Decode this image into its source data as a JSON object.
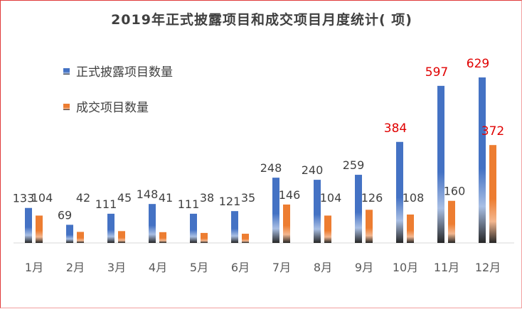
{
  "chart_data": {
    "type": "bar",
    "title": "2019年正式披露项目和成交项目月度统计( 项)",
    "categories": [
      "1月",
      "2月",
      "3月",
      "4月",
      "5月",
      "6月",
      "7月",
      "8月",
      "9月",
      "10月",
      "11月",
      "12月"
    ],
    "series": [
      {
        "name": "正式披露项目数量",
        "color": "#4472c4",
        "values": [
          133,
          69,
          111,
          148,
          111,
          121,
          248,
          240,
          259,
          384,
          597,
          629
        ],
        "labels": [
          "133",
          "69",
          "111",
          "148",
          "111",
          "121",
          "248",
          "240",
          "259",
          "384",
          "597",
          "629"
        ]
      },
      {
        "name": "成交项目数量",
        "color": "#ed7d31",
        "values": [
          104,
          42,
          45,
          41,
          38,
          35,
          146,
          104,
          126,
          108,
          160,
          372
        ],
        "labels": [
          "104",
          "42",
          "45",
          "41",
          "38",
          "35",
          "146",
          "104",
          "126",
          "108",
          "160",
          "372"
        ]
      }
    ],
    "highlight_label_color": "#e00000",
    "highlighted_points": [
      {
        "series": 0,
        "index": 9
      },
      {
        "series": 0,
        "index": 10
      },
      {
        "series": 0,
        "index": 11
      },
      {
        "series": 1,
        "index": 11
      }
    ],
    "ylim": [
      0,
      629
    ],
    "xlabel": "",
    "ylabel": "",
    "grid": false,
    "legend_position": "top-left"
  }
}
